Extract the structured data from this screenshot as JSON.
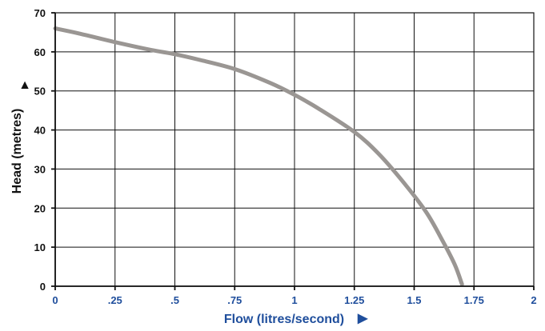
{
  "chart_data": {
    "type": "line",
    "xlabel": "Flow (litres/second)",
    "ylabel": "Head (metres)",
    "xlim": [
      0,
      2
    ],
    "ylim": [
      0,
      70
    ],
    "x_ticks": [
      {
        "value": 0,
        "label": "0"
      },
      {
        "value": 0.25,
        "label": ".25"
      },
      {
        "value": 0.5,
        "label": ".5"
      },
      {
        "value": 0.75,
        "label": ".75"
      },
      {
        "value": 1,
        "label": "1"
      },
      {
        "value": 1.25,
        "label": "1.25"
      },
      {
        "value": 1.5,
        "label": "1.5"
      },
      {
        "value": 1.75,
        "label": "1.75"
      },
      {
        "value": 2,
        "label": "2"
      }
    ],
    "y_ticks": [
      {
        "value": 0,
        "label": "0"
      },
      {
        "value": 10,
        "label": "10"
      },
      {
        "value": 20,
        "label": "20"
      },
      {
        "value": 30,
        "label": "30"
      },
      {
        "value": 40,
        "label": "40"
      },
      {
        "value": 50,
        "label": "50"
      },
      {
        "value": 60,
        "label": "60"
      },
      {
        "value": 70,
        "label": "70"
      }
    ],
    "grid": true,
    "series": [
      {
        "color": "#9a9693",
        "points": [
          [
            0,
            66
          ],
          [
            0.1,
            64.7
          ],
          [
            0.25,
            62.5
          ],
          [
            0.4,
            60.5
          ],
          [
            0.5,
            59.4
          ],
          [
            0.6,
            58
          ],
          [
            0.75,
            55.6
          ],
          [
            0.9,
            52
          ],
          [
            1,
            49
          ],
          [
            1.1,
            45.5
          ],
          [
            1.25,
            39.5
          ],
          [
            1.35,
            34
          ],
          [
            1.45,
            27
          ],
          [
            1.55,
            19
          ],
          [
            1.62,
            11.5
          ],
          [
            1.67,
            5.5
          ],
          [
            1.7,
            0.5
          ]
        ]
      }
    ],
    "x_arrow": "▶",
    "y_arrow": "▲"
  }
}
